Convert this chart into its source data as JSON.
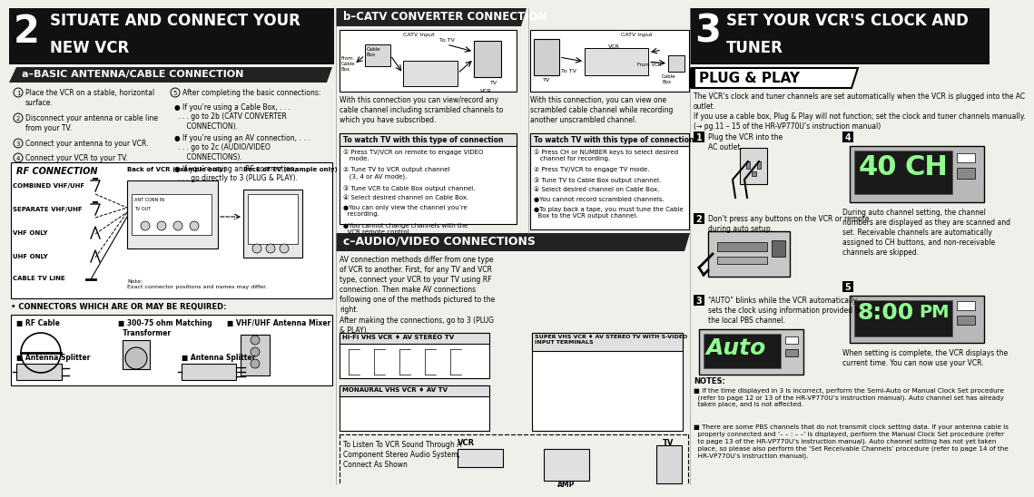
{
  "bg_color": "#f0f0eb",
  "white": "#ffffff",
  "black": "#000000",
  "dark_header": "#1a1a1a",
  "section_a_bg": "#2a2a2a",
  "light_gray": "#e0e0e0",
  "medium_gray": "#aaaaaa",
  "s2_num": "2",
  "s2_line1": "SITUATE AND CONNECT YOUR",
  "s2_line2": "NEW VCR",
  "s2_a_title": "a–BASIC ANTENNA/CABLE CONNECTION",
  "steps_left": [
    [
      "1",
      "Place the VCR on a stable, horizontal\nsurface."
    ],
    [
      "2",
      "Disconnect your antenna or cable line\nfrom your TV."
    ],
    [
      "3",
      "Connect your antenna to your VCR."
    ],
    [
      "4",
      "Connect your VCR to your TV."
    ]
  ],
  "step5_head": "5  After completing the basic connections:",
  "step5_bullets": [
    [
      "● If you’re using a Cable Box, . . .",
      ". . . go to 2b (CATV CONVERTER\n    CONNECTION)."
    ],
    [
      "● If you’re using an AV connection, . . .",
      ". . . go to 2c (AUDIO/VIDEO\n    CONNECTIONS)."
    ],
    [
      "● If you’re using an RF connection, . . .",
      ". . . go directly to 3 (PLUG & PLAY)."
    ]
  ],
  "rf_title": "RF CONNECTION",
  "rf_labels": [
    "COMBINED VHF/UHF",
    "SEPARATE VHF/UHF",
    "VHF ONLY",
    "UHF ONLY",
    "CABLE TV LINE"
  ],
  "back_vcr": "Back of VCR (example only)",
  "back_tv": "Back of TV (example only)",
  "note_text": "Note:\nExact connector positions and names may differ.",
  "conn_title": "• CONNECTORS WHICH ARE OR MAY BE REQUIRED:",
  "conn_items": [
    "■ RF Cable",
    "■ 300-75 ohm Matching\n  Transformer",
    "■ VHF/UHF Antenna Mixer"
  ],
  "conn_items2": [
    "■ Antenna Splitter",
    "■ Antenna Splitter"
  ],
  "sb_title": "b–CATV CONVERTER CONNECTION",
  "catv_input": "CATV Input",
  "to_tv": "To TV",
  "cable_box": "Cable\nBox",
  "from_cable": "From\nCable\nBox",
  "tv_lbl": "TV",
  "vcr_lbl": "VCR",
  "catv_desc1": "With this connection you can view/record any\ncable channel including scrambled channels to\nwhich you have subscribed.",
  "watch1_title": "To watch TV with this type of connection",
  "watch1_items": [
    "① Press TV/VCR on remote to engage VIDEO\n   mode.",
    "② Tune TV to VCR output channel\n   (3, 4 or AV mode).",
    "③ Tune VCR to Cable Box output channel.",
    "④ Select desired channel on Cable Box.",
    "●You can only view the channel you’re\n  recording.",
    "●You cannot change channels with the\n  VCR remote control."
  ],
  "catv2_input": "CATV Input",
  "from_vcr": "From VCR",
  "to_tv2": "To TV",
  "cable_box2": "Cable\nBox",
  "catv_desc2": "With this connection, you can view one\nscrambled cable channel while recording\nanother unscrambled channel.",
  "watch2_title": "To watch TV with this type of connection",
  "watch2_items": [
    "① Press CH or NUMBER keys to select desired\n   channel for recording.",
    "② Press TV/VCR to engage TV mode.",
    "③ Tune TV to Cable Box output channel.",
    "④ Select desired channel on Cable Box.",
    "●You cannot record scrambled channels.",
    "●To play back a tape, you must tune the Cable\n  Box to the VCR output channel."
  ],
  "sc_title": "c–AUDIO/VIDEO CONNECTIONS",
  "av_desc": "AV connection methods differ from one type\nof VCR to another. First, for any TV and VCR\ntype, connect your VCR to your TV using RF\nconnection. Then make AV connections\nfollowing one of the methods pictured to the\nright.\nAfter making the connections, go to 3 (PLUG\n& PLAY).",
  "hifi_lbl": "Hi-Fi VHS VCR ♦ AV STEREO TV",
  "mono_lbl": "MONAURAL VHS VCR ♦ AV TV",
  "super_lbl": "SUPER VHS VCR ♦ AV STEREO TV WITH S-VIDEO\nINPUT TERMINALS",
  "audio_lbl": "To Listen To VCR Sound Through A\nComponent Stereo Audio System,\nConnect As Shown",
  "vcr_audio": "VCR",
  "tv_audio": "TV",
  "amp_audio": "AMP",
  "s3_num": "3",
  "s3_line1": "SET YOUR VCR'S CLOCK AND",
  "s3_line2": "TUNER",
  "plug_play": "PLUG & PLAY",
  "pp_desc1": "The VCR’s clock and tuner channels are set automatically when the VCR is plugged into the AC\noutlet.",
  "pp_desc2": "If you use a cable box, Plug & Play will not function; set the clock and tuner channels manually.\n(→ pg.11 – 15 of the HR-VP770U’s instruction manual)",
  "p1_lbl": "1",
  "p1_txt": "Plug the VCR into the\nAC outlet.",
  "p2_lbl": "2",
  "p2_txt": "Don’t press any buttons on the VCR or remote\nduring auto setup.",
  "p3_lbl": "3",
  "p3_txt": "“AUTO” blinks while the VCR automatically\nsets the clock using information provided by\nthe local PBS channel.",
  "p4_lbl": "4",
  "p4_txt": "During auto channel setting, the channel\nnumbers are displayed as they are scanned and\nset. Receivable channels are automatically\nassigned to CH buttons, and non-receivable\nchannels are skipped.",
  "p5_lbl": "5",
  "p5_txt": "When setting is complete, the VCR displays the\ncurrent time. You can now use your VCR.",
  "notes_title": "NOTES:",
  "note1": "■ If the time displayed in 3 is incorrect, perform the Semi-Auto or Manual Clock Set procedure\n  (refer to page 12 or 13 of the HR-VP770U’s instruction manual). Auto channel set has already\n  taken place, and is not affected.",
  "note2": "■ There are some PBS channels that do not transmit clock setting data. If your antenna cable is\n  properly connected and ‘– – : – –’ is displayed, perform the Manual Clock Set procedure (refer\n  to page 13 of the HR-VP770U’s instruction manual). Auto channel setting has not yet taken\n  place, so please also perform the ‘Set Receivable Channels’ procedure (refer to page 14 of the\n  HR-VP770U’s instruction manual).",
  "display_40ch": "40 CH",
  "display_800pm": "8:00 PM",
  "display_auto": "Auto"
}
